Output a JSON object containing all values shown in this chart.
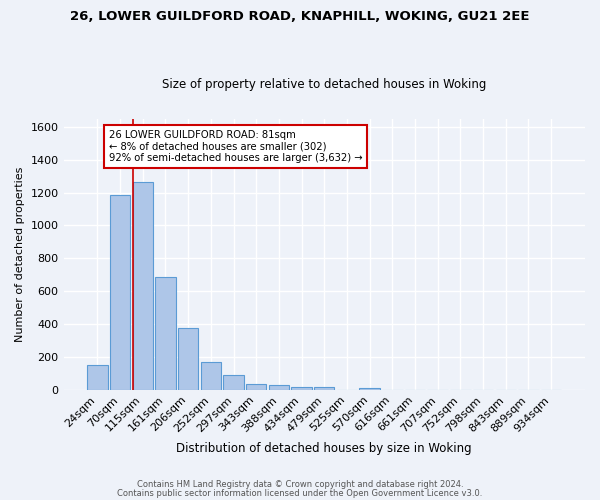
{
  "title1": "26, LOWER GUILDFORD ROAD, KNAPHILL, WOKING, GU21 2EE",
  "title2": "Size of property relative to detached houses in Woking",
  "xlabel": "Distribution of detached houses by size in Woking",
  "ylabel": "Number of detached properties",
  "categories": [
    "24sqm",
    "70sqm",
    "115sqm",
    "161sqm",
    "206sqm",
    "252sqm",
    "297sqm",
    "343sqm",
    "388sqm",
    "434sqm",
    "479sqm",
    "525sqm",
    "570sqm",
    "616sqm",
    "661sqm",
    "707sqm",
    "752sqm",
    "798sqm",
    "843sqm",
    "889sqm",
    "934sqm"
  ],
  "values": [
    150,
    1185,
    1265,
    685,
    375,
    170,
    90,
    38,
    28,
    20,
    15,
    0,
    12,
    0,
    0,
    0,
    0,
    0,
    0,
    0,
    0
  ],
  "bar_color": "#aec6e8",
  "bar_edge_color": "#5b9bd5",
  "property_line_color": "#cc0000",
  "annotation_text": "26 LOWER GUILDFORD ROAD: 81sqm\n← 8% of detached houses are smaller (302)\n92% of semi-detached houses are larger (3,632) →",
  "annotation_box_color": "#ffffff",
  "annotation_box_edge": "#cc0000",
  "ylim": [
    0,
    1650
  ],
  "yticks": [
    0,
    200,
    400,
    600,
    800,
    1000,
    1200,
    1400,
    1600
  ],
  "background_color": "#eef2f9",
  "grid_color": "#ffffff",
  "footer1": "Contains HM Land Registry data © Crown copyright and database right 2024.",
  "footer2": "Contains public sector information licensed under the Open Government Licence v3.0."
}
